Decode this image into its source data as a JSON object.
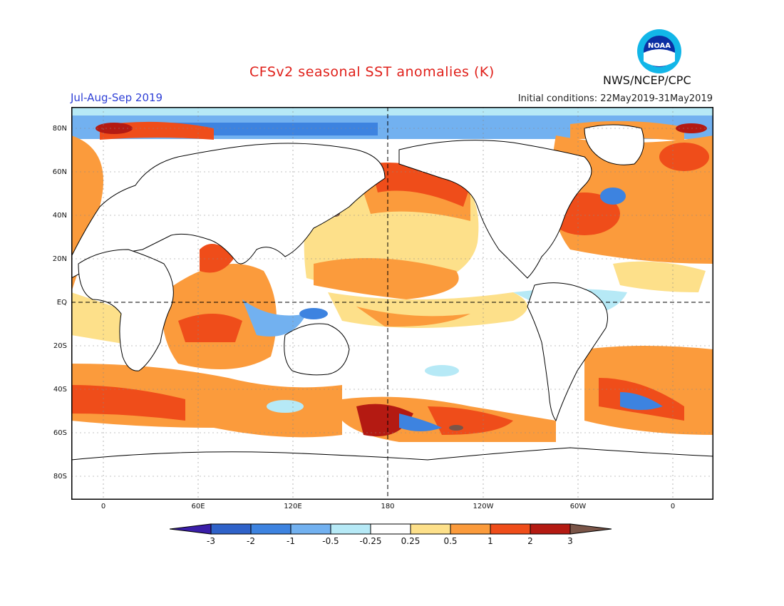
{
  "title": "CFSv2 seasonal SST anomalies (K)",
  "period": "Jul-Aug-Sep 2019",
  "initial_conditions": "Initial conditions: 22May2019-31May2019",
  "agency": "NWS/NCEP/CPC",
  "logo_text": "NOAA",
  "lat_labels": [
    {
      "id": "lat-80n",
      "text": "80N"
    },
    {
      "id": "lat-60n",
      "text": "60N"
    },
    {
      "id": "lat-40n",
      "text": "40N"
    },
    {
      "id": "lat-20n",
      "text": "20N"
    },
    {
      "id": "lat-eq",
      "text": "EQ"
    },
    {
      "id": "lat-20s",
      "text": "20S"
    },
    {
      "id": "lat-40s",
      "text": "40S"
    },
    {
      "id": "lat-60s",
      "text": "60S"
    },
    {
      "id": "lat-80s",
      "text": "80S"
    }
  ],
  "lon_labels": [
    {
      "id": "lon-0-left",
      "text": "0"
    },
    {
      "id": "lon-60e",
      "text": "60E"
    },
    {
      "id": "lon-120e",
      "text": "120E"
    },
    {
      "id": "lon-180",
      "text": "180"
    },
    {
      "id": "lon-120w",
      "text": "120W"
    },
    {
      "id": "lon-60w",
      "text": "60W"
    },
    {
      "id": "lon-0-right",
      "text": "0"
    }
  ],
  "colorbar": {
    "labels": [
      "-3",
      "-2",
      "-1",
      "-0.5",
      "-0.25",
      "0.25",
      "0.5",
      "1",
      "2",
      "3"
    ],
    "colors": [
      "#3a1ea8",
      "#2f62c9",
      "#3d83e0",
      "#72b1f0",
      "#b6e9f6",
      "#ffffff",
      "#fde08a",
      "#fb9b3c",
      "#ef4d1a",
      "#b41a12",
      "#7a5548"
    ]
  },
  "colors": {
    "land": "#ffffff",
    "ocean_weak": "#ffffff",
    "title": "#e0201a",
    "period": "#2e3fd6"
  }
}
